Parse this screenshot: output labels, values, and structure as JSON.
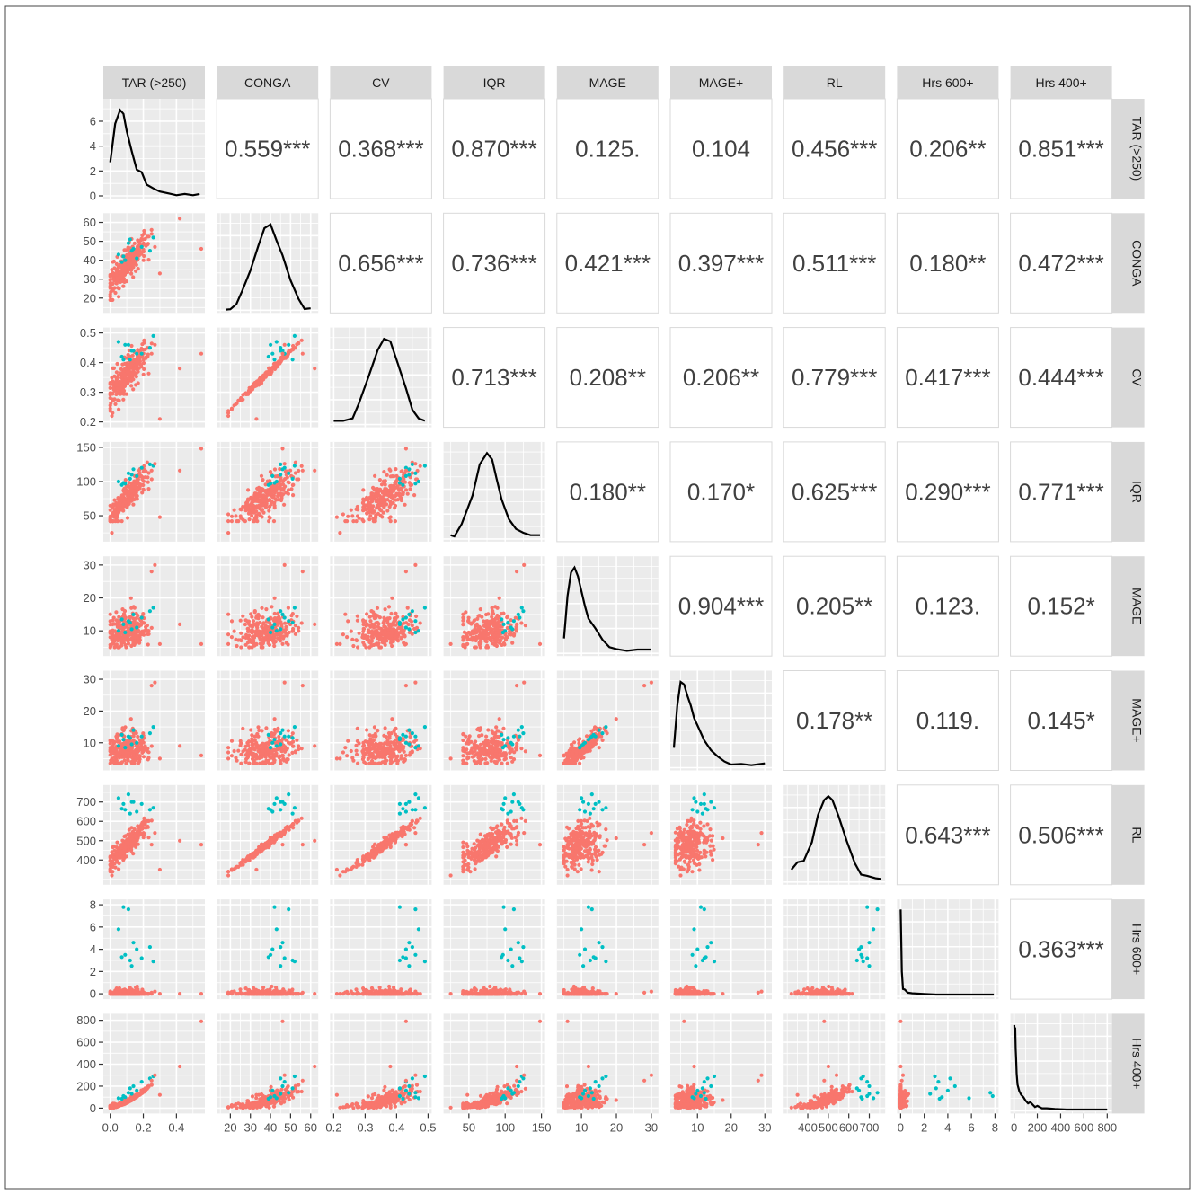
{
  "chart_data": {
    "type": "scatter",
    "variables": [
      "TAR (>250)",
      "CONGA",
      "CV",
      "IQR",
      "MAGE",
      "MAGE+",
      "RL",
      "Hrs 600+",
      "Hrs 400+"
    ],
    "axis_ranges": [
      [
        -0.02,
        0.55
      ],
      [
        15,
        62
      ],
      [
        0.2,
        0.5
      ],
      [
        20,
        150
      ],
      [
        4,
        31
      ],
      [
        3,
        31
      ],
      [
        300,
        760
      ],
      [
        0,
        8
      ],
      [
        0,
        810
      ]
    ],
    "ticks": [
      {
        "values": [
          0.0,
          0.2,
          0.4
        ],
        "labels": [
          "0.0",
          "0.2",
          "0.4"
        ]
      },
      {
        "values": [
          20,
          30,
          40,
          50,
          60
        ],
        "labels": [
          "20",
          "30",
          "40",
          "50",
          "60"
        ]
      },
      {
        "values": [
          0.2,
          0.3,
          0.4,
          0.5
        ],
        "labels": [
          "0.2",
          "0.3",
          "0.4",
          "0.5"
        ]
      },
      {
        "values": [
          50,
          100,
          150
        ],
        "labels": [
          "50",
          "100",
          "150"
        ]
      },
      {
        "values": [
          10,
          20,
          30
        ],
        "labels": [
          "10",
          "20",
          "30"
        ]
      },
      {
        "values": [
          10,
          20,
          30
        ],
        "labels": [
          "10",
          "20",
          "30"
        ]
      },
      {
        "values": [
          400,
          500,
          600,
          700
        ],
        "labels": [
          "400",
          "500",
          "600",
          "700"
        ]
      },
      {
        "values": [
          0,
          2,
          4,
          6,
          8
        ],
        "labels": [
          "0",
          "2",
          "4",
          "6",
          "8"
        ]
      },
      {
        "values": [
          0,
          200,
          400,
          600,
          800
        ],
        "labels": [
          "0",
          "200",
          "400",
          "600",
          "800"
        ]
      }
    ],
    "density_y_ticks": {
      "values": [
        0,
        2,
        4,
        6
      ],
      "labels": [
        "0",
        "2",
        "4",
        "6"
      ]
    },
    "correlations": [
      [
        null,
        "0.559***",
        "0.368***",
        "0.870***",
        "0.125.",
        "0.104",
        "0.456***",
        "0.206**",
        "0.851***"
      ],
      [
        null,
        null,
        "0.656***",
        "0.736***",
        "0.421***",
        "0.397***",
        "0.511***",
        "0.180**",
        "0.472***"
      ],
      [
        null,
        null,
        null,
        "0.713***",
        "0.208**",
        "0.206**",
        "0.779***",
        "0.417***",
        "0.444***"
      ],
      [
        null,
        null,
        null,
        null,
        "0.180**",
        "0.170*",
        "0.625***",
        "0.290***",
        "0.771***"
      ],
      [
        null,
        null,
        null,
        null,
        null,
        "0.904***",
        "0.205**",
        "0.123.",
        "0.152*"
      ],
      [
        null,
        null,
        null,
        null,
        null,
        null,
        "0.178**",
        "0.119.",
        "0.145*"
      ],
      [
        null,
        null,
        null,
        null,
        null,
        null,
        null,
        "0.643***",
        "0.506***"
      ],
      [
        null,
        null,
        null,
        null,
        null,
        null,
        null,
        null,
        "0.363***"
      ],
      [
        null,
        null,
        null,
        null,
        null,
        null,
        null,
        null,
        null
      ]
    ],
    "densities": [
      {
        "x": [
          0.0,
          0.03,
          0.06,
          0.08,
          0.1,
          0.13,
          0.16,
          0.19,
          0.22,
          0.26,
          0.3,
          0.35,
          0.4,
          0.45,
          0.5,
          0.54
        ],
        "y": [
          2.7,
          5.8,
          6.9,
          6.6,
          5.2,
          3.6,
          2.1,
          1.9,
          0.9,
          0.6,
          0.35,
          0.2,
          0.05,
          0.15,
          0.05,
          0.15
        ]
      },
      {
        "x": [
          18,
          20,
          23,
          26,
          30,
          34,
          37,
          40,
          43,
          46,
          50,
          54,
          57,
          60
        ],
        "y": [
          0.05,
          0.08,
          0.5,
          1.6,
          3.2,
          5.2,
          6.6,
          6.9,
          5.6,
          4.4,
          2.4,
          0.9,
          0.1,
          0.15
        ]
      },
      {
        "x": [
          0.2,
          0.23,
          0.26,
          0.28,
          0.31,
          0.34,
          0.36,
          0.38,
          0.4,
          0.43,
          0.45,
          0.47,
          0.49
        ],
        "y": [
          0.3,
          0.3,
          0.5,
          1.7,
          3.8,
          6.0,
          6.9,
          6.7,
          5.2,
          2.9,
          1.2,
          0.5,
          0.3
        ]
      },
      {
        "x": [
          25,
          30,
          40,
          55,
          65,
          75,
          82,
          88,
          95,
          105,
          115,
          125,
          135,
          148
        ],
        "y": [
          0.3,
          0.2,
          1.2,
          3.5,
          6.0,
          6.9,
          6.4,
          4.9,
          3.2,
          1.6,
          0.8,
          0.5,
          0.3,
          0.3
        ]
      },
      {
        "x": [
          5,
          6,
          7,
          8,
          9,
          10,
          11,
          12,
          14,
          16,
          18,
          20,
          23,
          26,
          30
        ],
        "y": [
          1.2,
          4.6,
          6.5,
          6.9,
          6.2,
          5.0,
          3.8,
          2.8,
          2.0,
          1.1,
          0.5,
          0.35,
          0.2,
          0.3,
          0.3
        ]
      },
      {
        "x": [
          3,
          4,
          5,
          6,
          7,
          8,
          9,
          10,
          12,
          14,
          16,
          18,
          20,
          23,
          26,
          30
        ],
        "y": [
          1.6,
          5.0,
          6.9,
          6.7,
          5.8,
          5.0,
          4.0,
          3.4,
          2.2,
          1.4,
          0.9,
          0.5,
          0.25,
          0.3,
          0.2,
          0.35
        ]
      },
      {
        "x": [
          320,
          350,
          380,
          420,
          450,
          480,
          500,
          520,
          550,
          590,
          630,
          660,
          690,
          730,
          755
        ],
        "y": [
          1.0,
          1.6,
          1.7,
          3.2,
          5.4,
          6.6,
          6.9,
          6.6,
          5.3,
          3.3,
          1.5,
          0.6,
          0.5,
          0.3,
          0.25
        ]
      },
      {
        "x": [
          0.0,
          0.1,
          0.2,
          0.35,
          0.6,
          1.0,
          2,
          3,
          4,
          5,
          6,
          7,
          7.9
        ],
        "y": [
          7.0,
          2.0,
          0.6,
          0.55,
          0.3,
          0.25,
          0.2,
          0.15,
          0.15,
          0.15,
          0.15,
          0.15,
          0.15
        ]
      },
      {
        "x": [
          2,
          6,
          10,
          14,
          18,
          22,
          30,
          45,
          60,
          80,
          100,
          120,
          140,
          160,
          180,
          200,
          240,
          280,
          350,
          450,
          600,
          800
        ],
        "y": [
          6.9,
          5.9,
          6.7,
          5.0,
          4.2,
          3.0,
          2.1,
          1.6,
          1.3,
          1.1,
          0.8,
          0.6,
          0.7,
          0.5,
          0.3,
          0.4,
          0.2,
          0.2,
          0.15,
          0.1,
          0.1,
          0.1
        ]
      }
    ],
    "groups": [
      {
        "color": "#f8766d"
      },
      {
        "color": "#00bfc4"
      }
    ],
    "grid": true,
    "legend": "none"
  },
  "labels": {
    "strip_names": [
      "TAR (>250)",
      "CONGA",
      "CV",
      "IQR",
      "MAGE",
      "MAGE+",
      "RL",
      "Hrs 600+",
      "Hrs 400+"
    ]
  }
}
